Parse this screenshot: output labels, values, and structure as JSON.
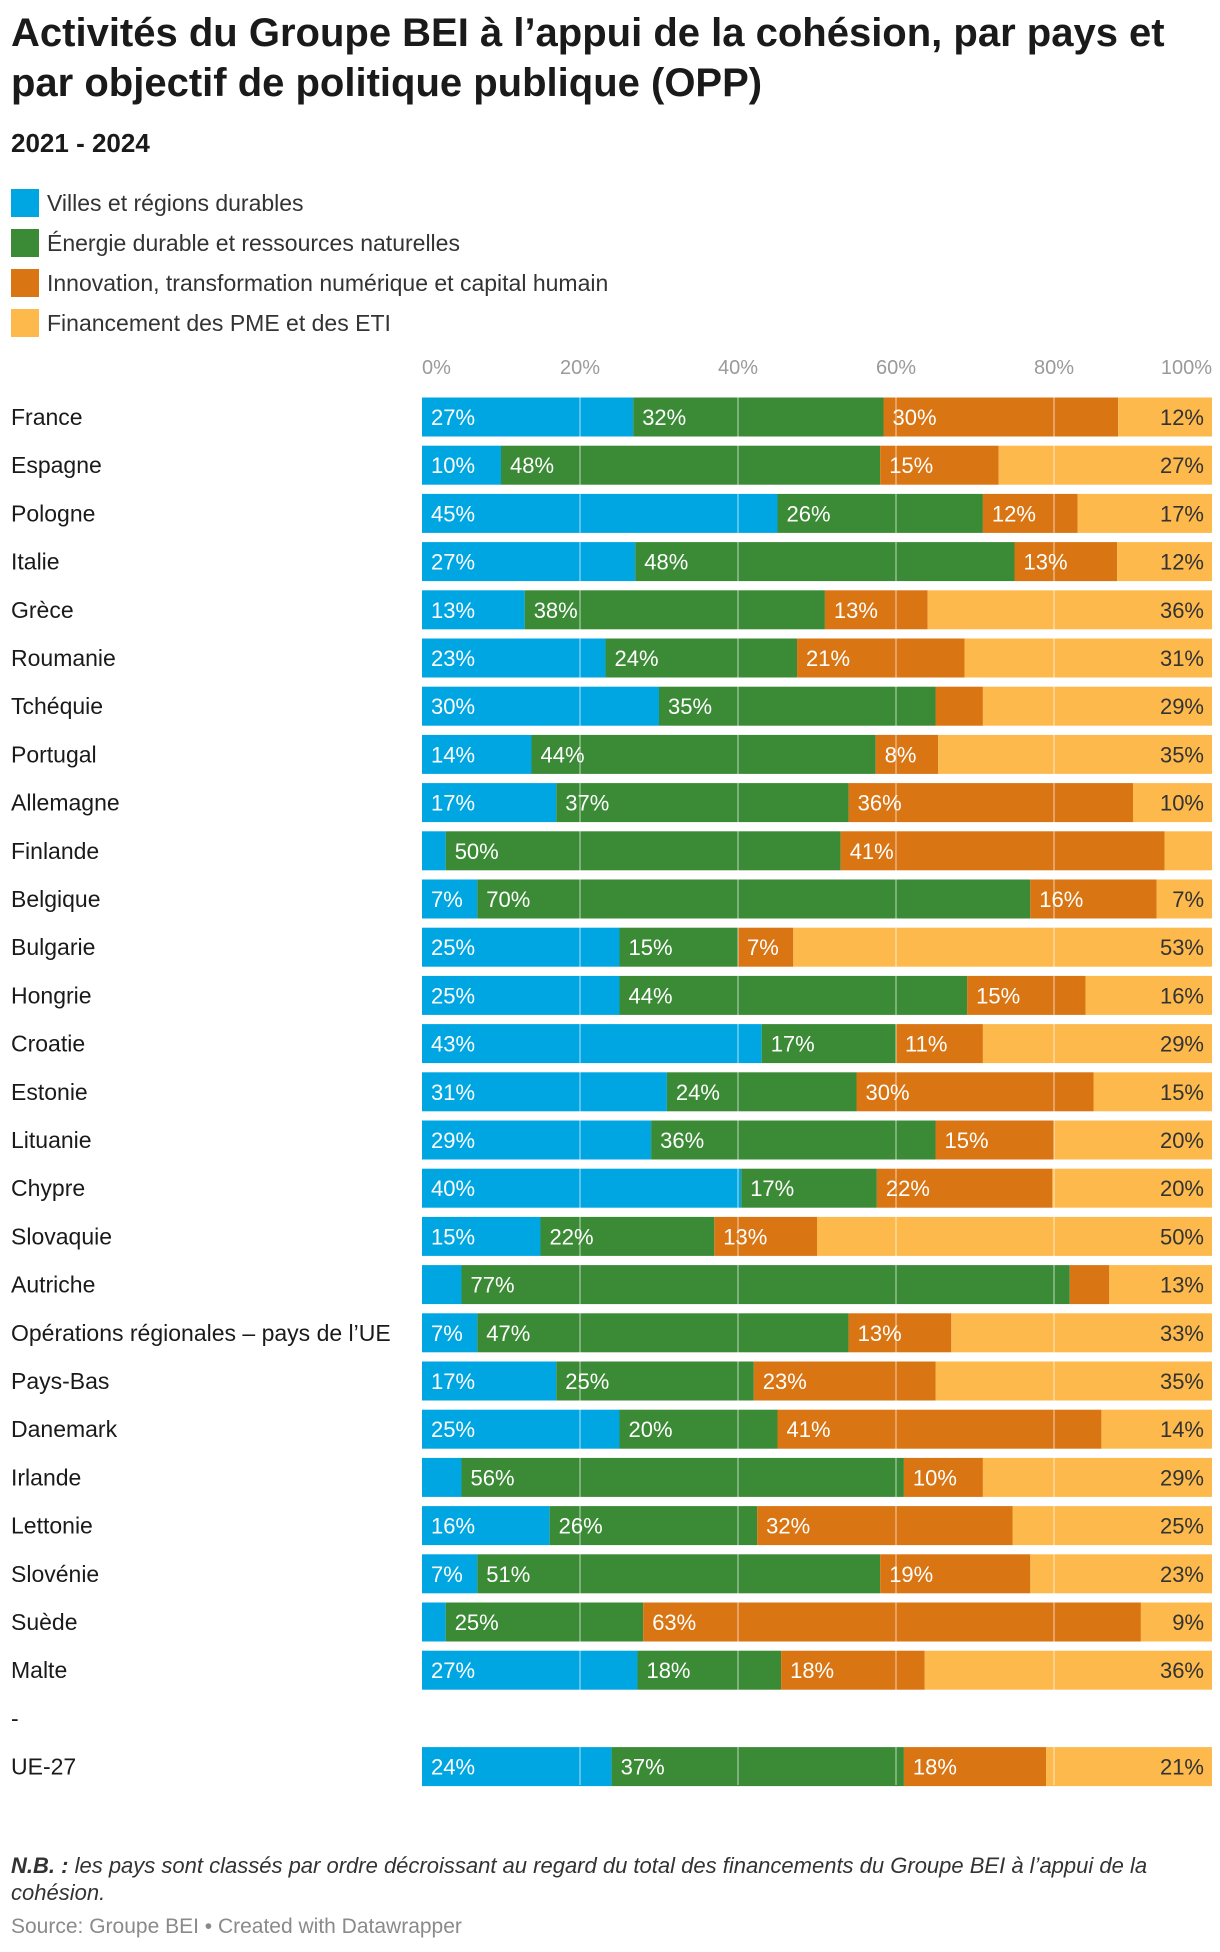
{
  "title": "Activités du Groupe BEI à l’appui de la cohésion, par pays et par objectif de politique publique (OPP)",
  "subtitle": "2021 - 2024",
  "note_label": "N.B. :",
  "note_text": "les pays sont classés par ordre décroissant au regard du total des financements du Groupe BEI à l’appui de la cohésion.",
  "source_line": "Source: Groupe BEI • Created with Datawrapper",
  "chart_data": {
    "type": "bar",
    "orientation": "horizontal",
    "stacked": true,
    "normalized": true,
    "xlim": [
      0,
      100
    ],
    "x_ticks": [
      "0%",
      "20%",
      "40%",
      "60%",
      "80%",
      "100%"
    ],
    "grid": true,
    "legend_position": "top-left",
    "categories": [
      "France",
      "Espagne",
      "Pologne",
      "Italie",
      "Grèce",
      "Roumanie",
      "Tchéquie",
      "Portugal",
      "Allemagne",
      "Finlande",
      "Belgique",
      "Bulgarie",
      "Hongrie",
      "Croatie",
      "Estonie",
      "Lituanie",
      "Chypre",
      "Slovaquie",
      "Autriche",
      "Opérations régionales – pays de l’UE",
      "Pays-Bas",
      "Danemark",
      "Irlande",
      "Lettonie",
      "Slovénie",
      "Suède",
      "Malte",
      "-",
      "UE-27"
    ],
    "series": [
      {
        "name": "Villes et régions durables",
        "color": "#00a6e2",
        "values": [
          27,
          10,
          45,
          27,
          13,
          23,
          30,
          14,
          17,
          3,
          7,
          25,
          25,
          43,
          31,
          29,
          40,
          15,
          5,
          7,
          17,
          25,
          5,
          16,
          7,
          3,
          27,
          null,
          24
        ],
        "labels": [
          "27%",
          "10%",
          "45%",
          "27%",
          "13%",
          "23%",
          "30%",
          "14%",
          "17%",
          "",
          "7%",
          "25%",
          "25%",
          "43%",
          "31%",
          "29%",
          "40%",
          "15%",
          "",
          "7%",
          "17%",
          "25%",
          "",
          "16%",
          "7%",
          "",
          "27%",
          "",
          "24%"
        ]
      },
      {
        "name": "Énergie durable et ressources naturelles",
        "color": "#3b8a36",
        "values": [
          32,
          48,
          26,
          48,
          38,
          24,
          35,
          44,
          37,
          50,
          70,
          15,
          44,
          17,
          24,
          36,
          17,
          22,
          77,
          47,
          25,
          20,
          56,
          26,
          51,
          25,
          18,
          null,
          37
        ],
        "labels": [
          "32%",
          "48%",
          "26%",
          "48%",
          "38%",
          "24%",
          "35%",
          "44%",
          "37%",
          "50%",
          "70%",
          "15%",
          "44%",
          "17%",
          "24%",
          "36%",
          "17%",
          "22%",
          "77%",
          "47%",
          "25%",
          "20%",
          "56%",
          "26%",
          "51%",
          "25%",
          "18%",
          "",
          "37%"
        ]
      },
      {
        "name": "Innovation, transformation numérique et capital humain",
        "color": "#d97513",
        "values": [
          30,
          15,
          12,
          13,
          13,
          21,
          6,
          8,
          36,
          41,
          16,
          7,
          15,
          11,
          30,
          15,
          22,
          13,
          5,
          13,
          23,
          41,
          10,
          32,
          19,
          63,
          18,
          null,
          18
        ],
        "labels": [
          "30%",
          "15%",
          "12%",
          "13%",
          "13%",
          "21%",
          "",
          "8%",
          "36%",
          "41%",
          "16%",
          "7%",
          "15%",
          "11%",
          "30%",
          "15%",
          "22%",
          "13%",
          "",
          "13%",
          "23%",
          "41%",
          "10%",
          "32%",
          "19%",
          "63%",
          "18%",
          "",
          "18%"
        ]
      },
      {
        "name": "Financement des PME et des ETI",
        "color": "#fdb94c",
        "values": [
          12,
          27,
          17,
          12,
          36,
          31,
          29,
          35,
          10,
          6,
          7,
          53,
          16,
          29,
          15,
          20,
          20,
          50,
          13,
          33,
          35,
          14,
          29,
          25,
          23,
          9,
          36,
          null,
          21
        ],
        "labels": [
          "12%",
          "27%",
          "17%",
          "12%",
          "36%",
          "31%",
          "29%",
          "35%",
          "10%",
          "",
          "7%",
          "53%",
          "16%",
          "29%",
          "15%",
          "20%",
          "20%",
          "50%",
          "13%",
          "33%",
          "35%",
          "14%",
          "29%",
          "25%",
          "23%",
          "9%",
          "36%",
          "",
          "21%"
        ]
      }
    ]
  }
}
